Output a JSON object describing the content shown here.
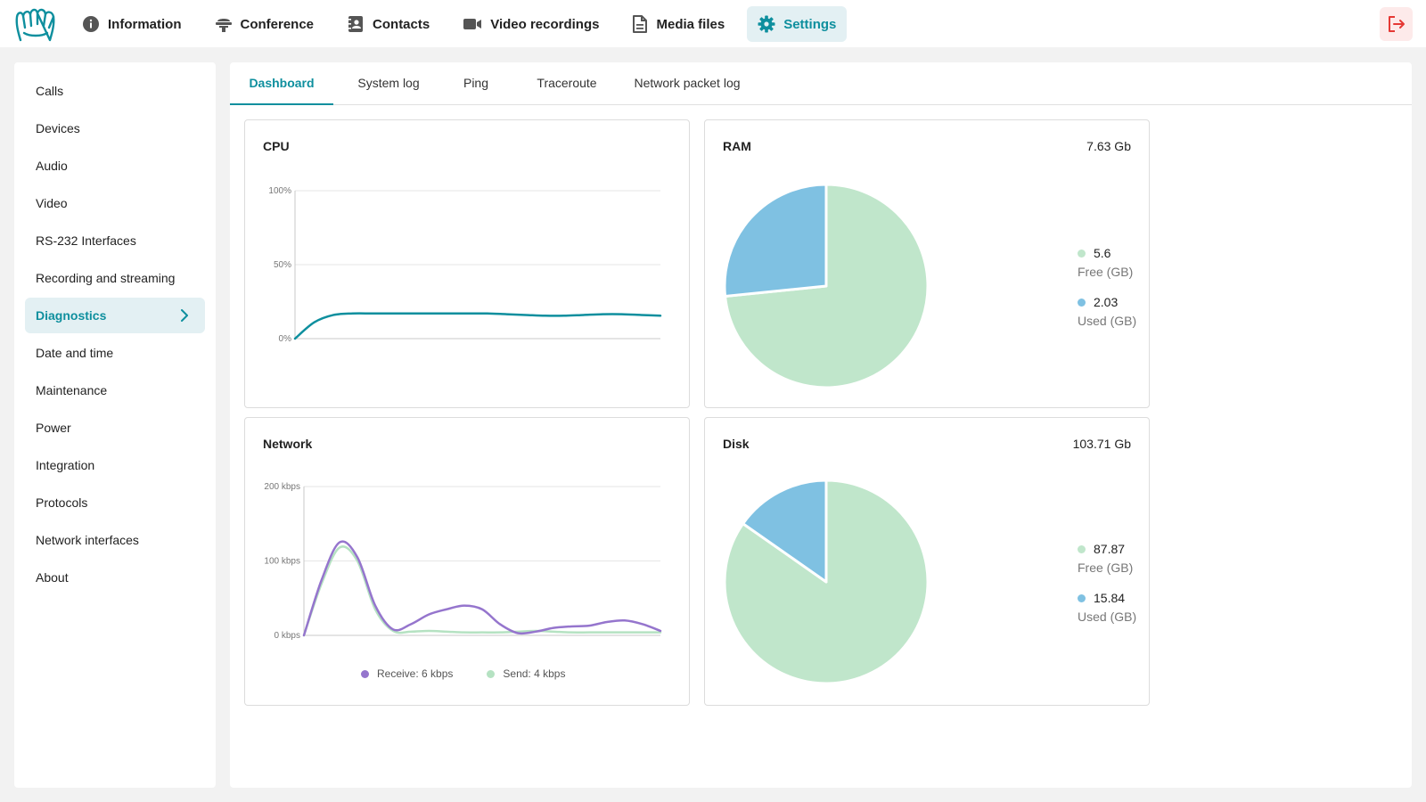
{
  "topnav": {
    "items": [
      {
        "label": "Information",
        "icon": "info-icon"
      },
      {
        "label": "Conference",
        "icon": "conference-icon"
      },
      {
        "label": "Contacts",
        "icon": "contacts-icon"
      },
      {
        "label": "Video recordings",
        "icon": "video-camera-icon"
      },
      {
        "label": "Media files",
        "icon": "file-icon"
      },
      {
        "label": "Settings",
        "icon": "gear-icon",
        "active": true
      }
    ],
    "accent": "#0e8f9e",
    "logout_icon": "logout-icon"
  },
  "sidebar": {
    "items": [
      {
        "label": "Calls"
      },
      {
        "label": "Devices"
      },
      {
        "label": "Audio"
      },
      {
        "label": "Video"
      },
      {
        "label": "RS-232 Interfaces"
      },
      {
        "label": "Recording and streaming"
      },
      {
        "label": "Diagnostics",
        "active": true
      },
      {
        "label": "Date and time"
      },
      {
        "label": "Maintenance"
      },
      {
        "label": "Power"
      },
      {
        "label": "Integration"
      },
      {
        "label": "Protocols"
      },
      {
        "label": "Network interfaces"
      },
      {
        "label": "About"
      }
    ]
  },
  "tabs": {
    "items": [
      {
        "label": "Dashboard",
        "active": true
      },
      {
        "label": "System log"
      },
      {
        "label": "Ping"
      },
      {
        "label": "Traceroute"
      },
      {
        "label": "Network packet log"
      }
    ]
  },
  "cards": {
    "cpu": {
      "title": "CPU"
    },
    "ram": {
      "title": "RAM",
      "total": "7.63 Gb",
      "free_value": "5.6",
      "free_label": "Free (GB)",
      "used_value": "2.03",
      "used_label": "Used (GB)"
    },
    "network": {
      "title": "Network",
      "receive_label": "Receive: 6 kbps",
      "send_label": "Send: 4 kbps"
    },
    "disk": {
      "title": "Disk",
      "total": "103.71 Gb",
      "free_value": "87.87",
      "free_label": "Free (GB)",
      "used_value": "15.84",
      "used_label": "Used (GB)"
    }
  },
  "chart_data": [
    {
      "type": "line",
      "title": "CPU",
      "y_ticks": [
        "100%",
        "50%",
        "0%"
      ],
      "ylim": [
        0,
        100
      ],
      "grid": true,
      "color": "#0e8f9e",
      "series": [
        {
          "values": [
            0,
            11,
            16,
            17,
            17,
            17,
            17,
            17,
            17,
            17,
            17,
            16.5,
            16,
            15.5,
            15.5,
            16,
            16.5,
            16.5,
            16,
            15.5
          ]
        }
      ]
    },
    {
      "type": "pie",
      "title": "RAM",
      "series": [
        {
          "name": "Free (GB)",
          "value": 5.6,
          "color": "#c0e6cb"
        },
        {
          "name": "Used (GB)",
          "value": 2.03,
          "color": "#7fc1e2"
        }
      ]
    },
    {
      "type": "line",
      "title": "Network",
      "y_ticks": [
        "200 kbps",
        "100 kbps",
        "0 kbps"
      ],
      "ylim": [
        0,
        200
      ],
      "grid": true,
      "legend_position": "bottom",
      "series": [
        {
          "name": "Receive: 6 kbps",
          "color": "#9575cd",
          "values": [
            0,
            75,
            125,
            105,
            40,
            8,
            15,
            28,
            35,
            40,
            35,
            15,
            3,
            5,
            10,
            12,
            13,
            18,
            20,
            15,
            6
          ]
        },
        {
          "name": "Send: 4 kbps",
          "color": "#b5e2c2",
          "values": [
            0,
            70,
            118,
            100,
            35,
            6,
            5,
            6,
            5,
            4,
            4,
            4,
            5,
            6,
            5,
            4,
            4,
            4,
            4,
            4,
            4
          ]
        }
      ]
    },
    {
      "type": "pie",
      "title": "Disk",
      "series": [
        {
          "name": "Free (GB)",
          "value": 87.87,
          "color": "#c0e6cb"
        },
        {
          "name": "Used (GB)",
          "value": 15.84,
          "color": "#7fc1e2"
        }
      ]
    }
  ]
}
